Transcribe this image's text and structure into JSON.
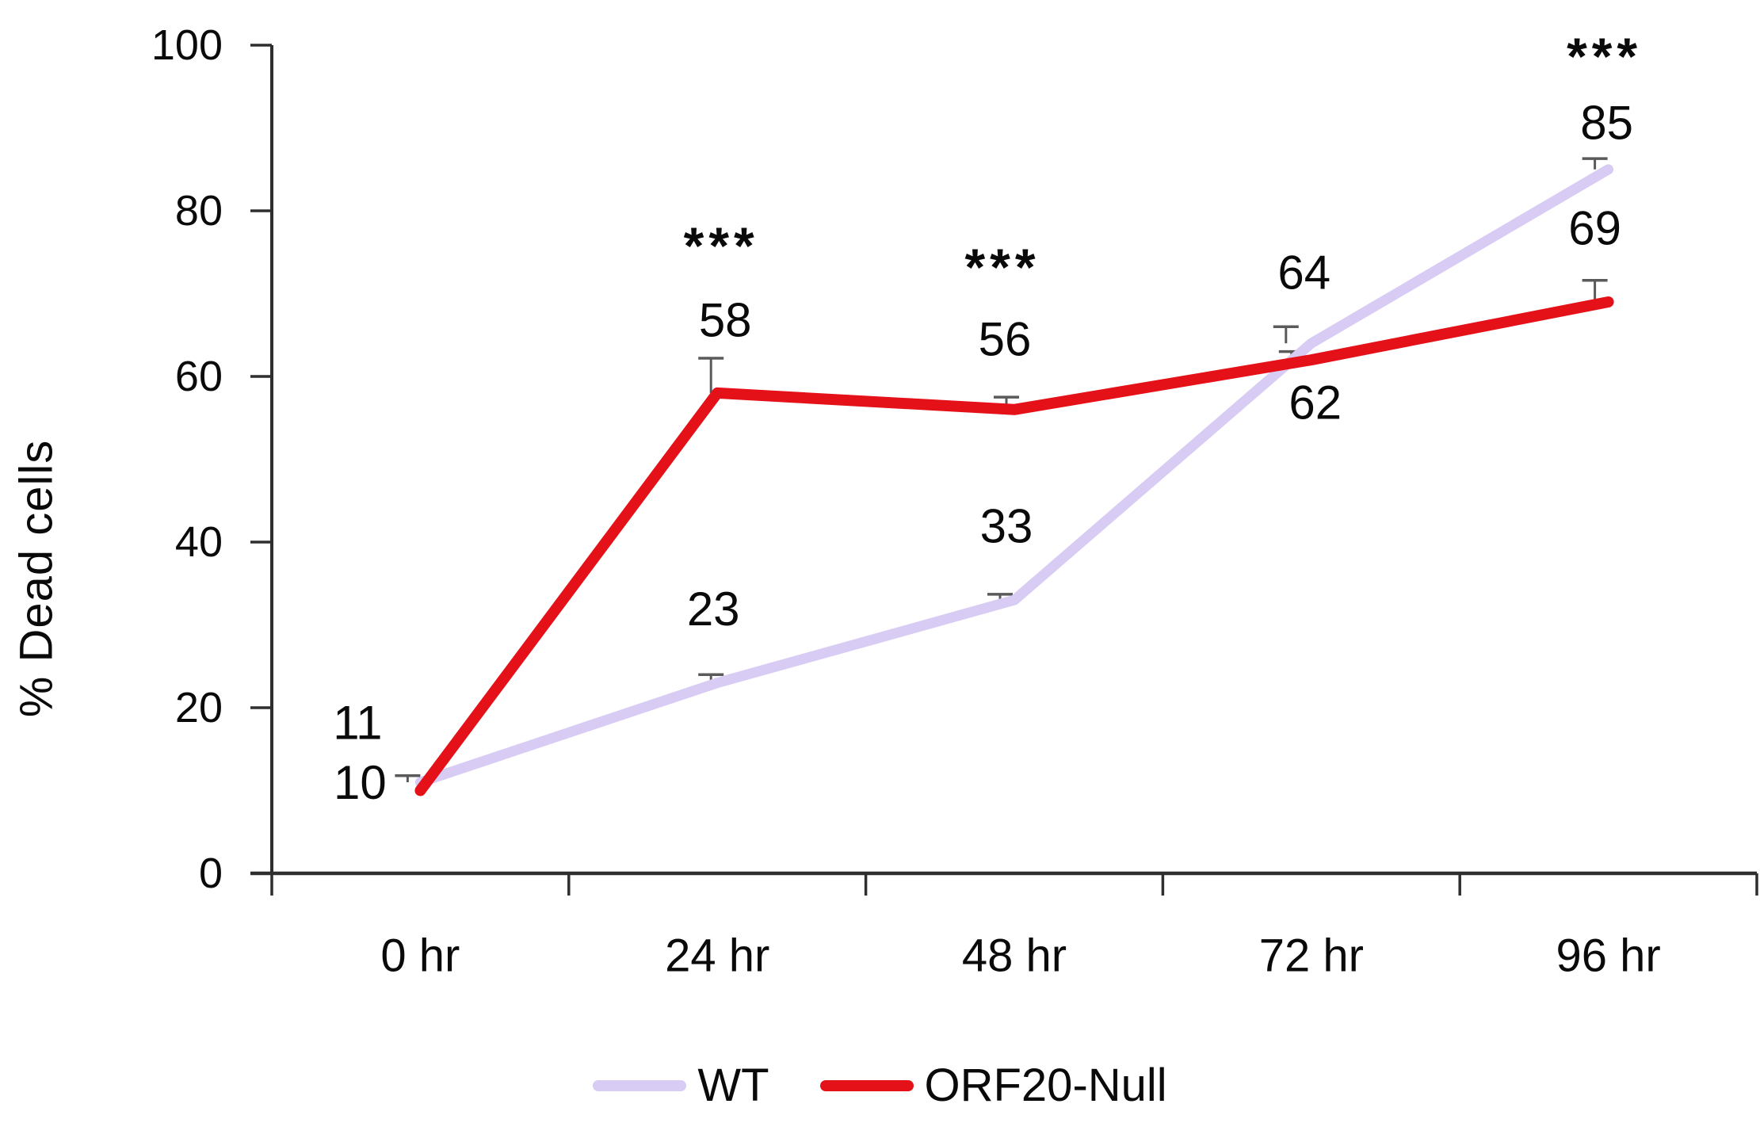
{
  "chart_data": {
    "type": "line",
    "title": "",
    "xlabel": "",
    "ylabel": "% Dead cells",
    "categories": [
      "0 hr",
      "24 hr",
      "48 hr",
      "72 hr",
      "96 hr"
    ],
    "y_axis": {
      "min": 0,
      "max": 100,
      "tick_step": 20,
      "tick_labels": [
        "0",
        "20",
        "40",
        "60",
        "80",
        "100"
      ]
    },
    "grid": false,
    "legend_position": "bottom",
    "axis_color": "#2e2e2e",
    "error_bar_color": "#5a5a5a",
    "text_color": "#0a0a0a",
    "series": [
      {
        "name": "WT",
        "color": "#d8ccf4",
        "values": [
          11,
          23,
          33,
          64,
          85
        ],
        "data_labels": [
          "11",
          "23",
          "33",
          "64",
          "85"
        ],
        "errors_up": [
          0.8,
          1.0,
          0.7,
          2.0,
          1.3
        ],
        "significance": [
          "",
          "",
          "",
          "",
          "***"
        ]
      },
      {
        "name": "ORF20-Null",
        "color": "#e41119",
        "values": [
          10,
          58,
          56,
          62,
          69
        ],
        "data_labels": [
          "10",
          "58",
          "56",
          "62",
          "69"
        ],
        "errors_up": [
          0,
          4.2,
          1.5,
          1.0,
          2.6
        ],
        "significance": [
          "",
          "***",
          "***",
          "",
          ""
        ]
      }
    ]
  }
}
